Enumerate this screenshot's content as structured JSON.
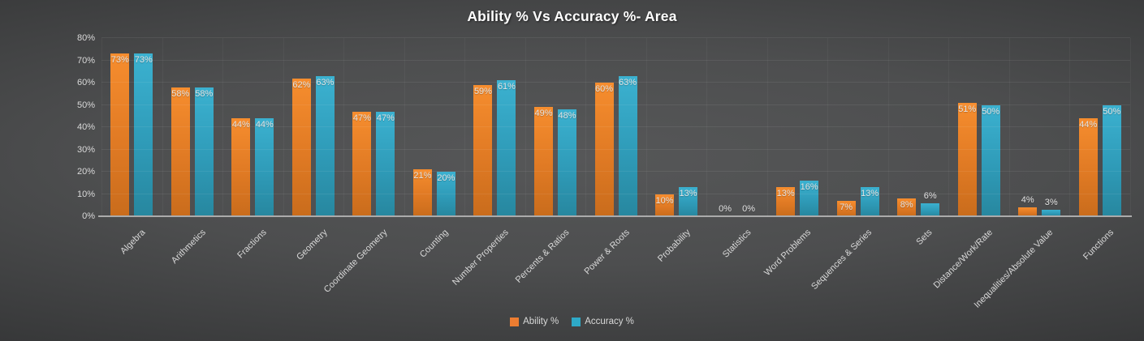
{
  "title": "Ability % Vs Accuracy %- Area",
  "chart_data": {
    "type": "bar",
    "title": "Ability % Vs Accuracy %- Area",
    "categories": [
      "Algebra",
      "Arithmetics",
      "Fractions",
      "Geometry",
      "Coordinate Geometry",
      "Counting",
      "Number Properties",
      "Percents & Ratios",
      "Power & Roots",
      "Probability",
      "Statistics",
      "Word Problems",
      "Sequences & Series",
      "Sets",
      "Distance/Work/Rate",
      "Inequalities/Absolute Value",
      "Functions"
    ],
    "series": [
      {
        "name": "Ability %",
        "color": "#ED7D31",
        "values": [
          73,
          58,
          44,
          62,
          47,
          21,
          59,
          49,
          60,
          10,
          0,
          13,
          7,
          8,
          51,
          4,
          44
        ]
      },
      {
        "name": "Accuracy %",
        "color": "#2EA9C7",
        "values": [
          73,
          58,
          44,
          63,
          47,
          20,
          61,
          48,
          63,
          13,
          0,
          16,
          13,
          6,
          50,
          3,
          50
        ]
      }
    ],
    "data_labels": [
      [
        "73%",
        "58%",
        "44%",
        "62%",
        "47%",
        "21%",
        "59%",
        "49%",
        "60%",
        "10%",
        "0%",
        "13%",
        "7%",
        "8%",
        "51%",
        "4%",
        "44%"
      ],
      [
        "73%",
        "58%",
        "44%",
        "63%",
        "47%",
        "20%",
        "61%",
        "48%",
        "63%",
        "13%",
        "0%",
        "16%",
        "13%",
        "6%",
        "50%",
        "3%",
        "50%"
      ]
    ],
    "xlabel": "",
    "ylabel": "",
    "ylim": [
      0,
      80
    ],
    "ytick_step": 10,
    "ytick_labels": [
      "0%",
      "10%",
      "20%",
      "30%",
      "40%",
      "50%",
      "60%",
      "70%",
      "80%"
    ],
    "grid": true,
    "legend_position": "bottom",
    "background_color_center": "#565758",
    "background_color_edge": "#262728",
    "axis_label_color": "#D9D9D9",
    "baseline_color": "#ABABAB"
  },
  "legend": {
    "items": [
      {
        "label": "Ability %",
        "color": "#ED7D31"
      },
      {
        "label": "Accuracy %",
        "color": "#2EA9C7"
      }
    ]
  }
}
